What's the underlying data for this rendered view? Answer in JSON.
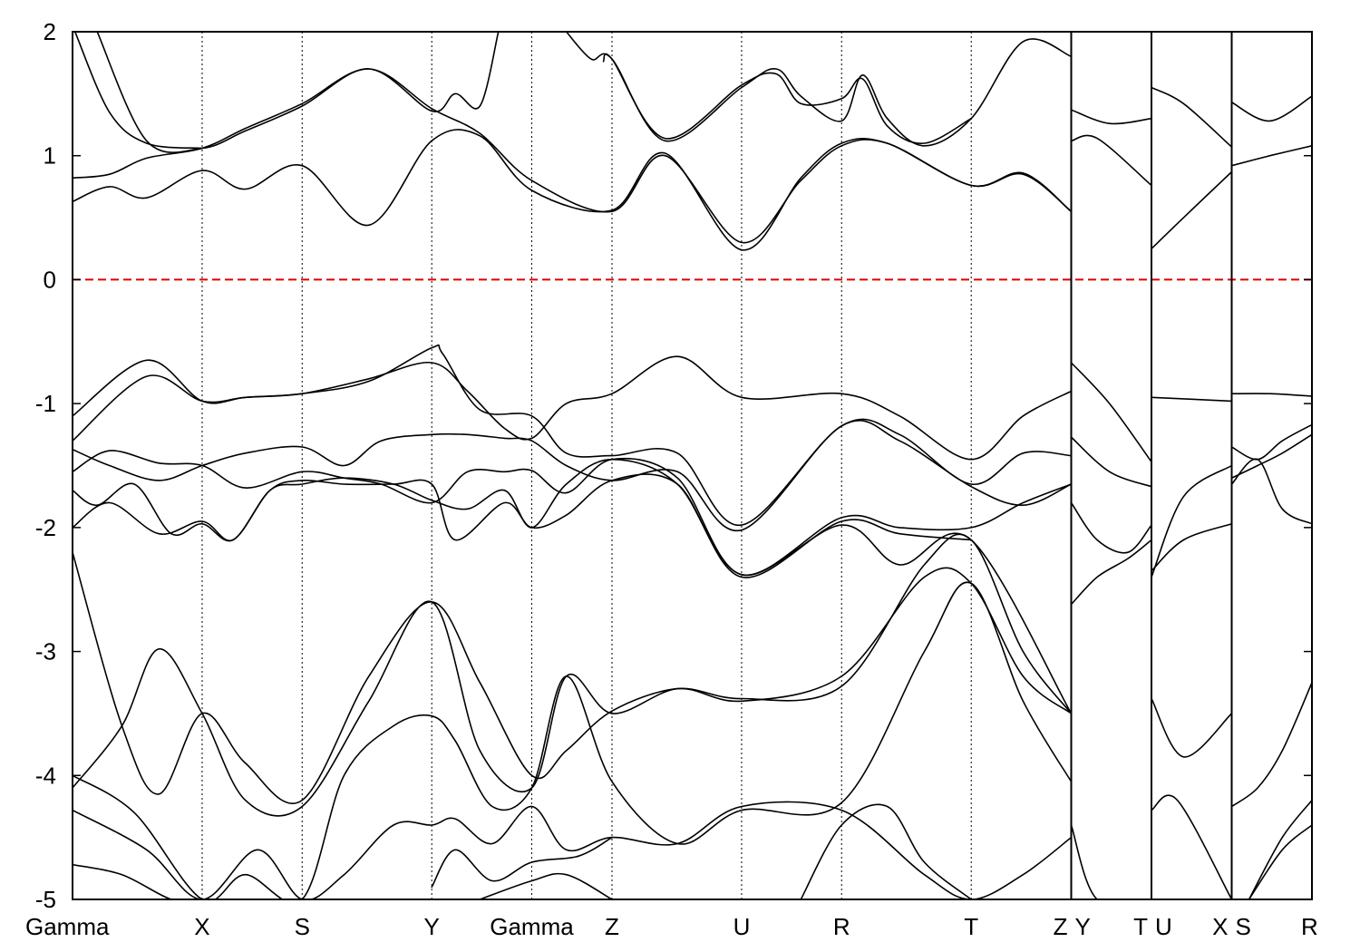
{
  "chart_data": {
    "type": "line",
    "title": "",
    "xlabel": "",
    "ylabel": "",
    "ylim": [
      -5,
      2
    ],
    "yticks": [
      2,
      1,
      0,
      -1,
      -2,
      -3,
      -4,
      -5
    ],
    "ytick_labels": [
      "2",
      "1",
      "0",
      "-1",
      "-2",
      "-3",
      "-4",
      "-5"
    ],
    "kpoints": [
      {
        "label": "Gamma",
        "x": 0.0
      },
      {
        "label": "X",
        "x": 1.05
      },
      {
        "label": "S",
        "x": 1.86
      },
      {
        "label": "Y",
        "x": 2.91
      },
      {
        "label": "Gamma",
        "x": 3.72
      },
      {
        "label": "Z",
        "x": 4.37
      },
      {
        "label": "U",
        "x": 5.42
      },
      {
        "label": "R",
        "x": 6.23
      },
      {
        "label": "T",
        "x": 7.28
      },
      {
        "label": "Z",
        "x": 8.09
      },
      {
        "label": "Y",
        "x": 8.09
      },
      {
        "label": "T",
        "x": 8.74
      },
      {
        "label": "U",
        "x": 8.74
      },
      {
        "label": "X",
        "x": 9.39
      },
      {
        "label": "S",
        "x": 9.39
      },
      {
        "label": "R",
        "x": 10.04
      }
    ],
    "xtick_labels": [
      "Gamma",
      "X",
      "S",
      "Y",
      "Gamma",
      "Z",
      "U",
      "R",
      "T",
      "Z",
      "Y",
      "T",
      "U",
      "X",
      "S",
      "R"
    ],
    "path_breaks": [
      8.09,
      8.74,
      9.39
    ],
    "reference_line": {
      "y": 0,
      "color": "#e00000",
      "style": "dashed"
    },
    "grid": "vertical dotted lines at high-symmetry points",
    "legend": "none",
    "colors": {
      "bands": "#000000",
      "fermi": "#e00000"
    },
    "series": [
      {
        "x": [
          0,
          0.3,
          0.6,
          1.05,
          1.4,
          1.86,
          2.4,
          2.91,
          3.3,
          3.72,
          4.37,
          4.8,
          5.42,
          5.9,
          6.23,
          6.6,
          7.28,
          7.7,
          8.09
        ],
        "values": [
          0.82,
          0.85,
          0.98,
          1.06,
          1.22,
          1.42,
          1.7,
          1.38,
          1.18,
          0.8,
          0.55,
          1.0,
          0.3,
          0.8,
          1.08,
          1.1,
          0.76,
          0.85,
          0.55
        ]
      },
      {
        "x": [
          0,
          0.3,
          0.6,
          1.05,
          1.4,
          1.86,
          2.4,
          2.91,
          3.3,
          3.72,
          4.37,
          4.8,
          5.42,
          5.9,
          6.23,
          6.6,
          7.28,
          7.7,
          8.09
        ],
        "values": [
          0.63,
          0.75,
          0.66,
          0.88,
          0.73,
          0.92,
          0.44,
          1.12,
          1.16,
          0.72,
          0.56,
          1.02,
          0.24,
          0.82,
          1.1,
          1.1,
          0.76,
          0.86,
          0.55
        ]
      },
      {
        "x": [
          0.2,
          0.6,
          1.05,
          1.4,
          1.86,
          2.4,
          2.91,
          3.1,
          3.3,
          3.45
        ],
        "values": [
          2.0,
          1.12,
          1.06,
          1.2,
          1.4,
          1.7,
          1.36,
          1.5,
          1.4,
          2.0
        ]
      },
      {
        "x": [
          0.02,
          0.3,
          0.6,
          1.05
        ],
        "values": [
          2.0,
          1.35,
          1.1,
          1.06
        ]
      },
      {
        "x": [
          4.0,
          4.2,
          4.37,
          4.8,
          5.42,
          5.7,
          5.9,
          6.23,
          6.4,
          6.6,
          6.9,
          7.28,
          7.7,
          8.09
        ],
        "values": [
          2.0,
          1.78,
          1.78,
          1.12,
          1.55,
          1.7,
          1.48,
          1.28,
          1.65,
          1.3,
          1.08,
          1.3,
          1.92,
          1.8
        ]
      },
      {
        "x": [
          4.3,
          4.37,
          4.8,
          5.42,
          5.7,
          5.9,
          6.23,
          6.4,
          6.6,
          6.9,
          7.28
        ],
        "values": [
          1.76,
          1.78,
          1.14,
          1.57,
          1.66,
          1.42,
          1.46,
          1.62,
          1.24,
          1.1,
          1.3
        ]
      },
      {
        "x": [
          8.09,
          8.4,
          8.74
        ],
        "values": [
          1.37,
          1.26,
          1.3
        ]
      },
      {
        "x": [
          8.09,
          8.3,
          8.74
        ],
        "values": [
          1.12,
          1.14,
          0.76
        ]
      },
      {
        "x": [
          8.74,
          9.0,
          9.39
        ],
        "values": [
          1.55,
          1.42,
          1.07
        ]
      },
      {
        "x": [
          8.74,
          9.0,
          9.39
        ],
        "values": [
          0.25,
          0.5,
          0.87
        ]
      },
      {
        "x": [
          9.39,
          9.7,
          10.04
        ],
        "values": [
          1.43,
          1.28,
          1.48
        ]
      },
      {
        "x": [
          9.39,
          9.7,
          10.04
        ],
        "values": [
          0.92,
          1.0,
          1.08
        ]
      },
      {
        "x": [
          0,
          0.6,
          1.05,
          1.4,
          1.86,
          2.4,
          2.91,
          3.2,
          3.5,
          3.72,
          4.0,
          4.37,
          4.9,
          5.42,
          6.23,
          6.7,
          7.28,
          7.7,
          8.09
        ],
        "values": [
          -1.1,
          -0.65,
          -0.98,
          -0.95,
          -0.92,
          -0.8,
          -0.67,
          -0.9,
          -1.2,
          -1.28,
          -1.0,
          -0.92,
          -0.62,
          -0.95,
          -0.92,
          -1.1,
          -1.45,
          -1.1,
          -0.9
        ]
      },
      {
        "x": [
          0,
          0.6,
          1.05,
          1.4,
          1.86,
          2.4,
          2.91,
          3.0,
          3.3,
          3.72,
          4.0,
          4.37,
          4.9,
          5.42,
          6.23,
          6.7,
          7.28,
          7.7,
          8.09
        ],
        "values": [
          -1.3,
          -0.78,
          -0.98,
          -0.95,
          -0.92,
          -0.82,
          -0.55,
          -0.6,
          -1.05,
          -1.1,
          -1.4,
          -1.42,
          -1.4,
          -1.98,
          -1.18,
          -1.25,
          -1.65,
          -1.4,
          -1.42
        ]
      },
      {
        "x": [
          0,
          0.3,
          0.7,
          1.05,
          1.4,
          1.86,
          2.2,
          2.5,
          2.91,
          3.2,
          3.5,
          3.72,
          4.0,
          4.37,
          4.9,
          5.42,
          6.23,
          6.7,
          7.28,
          7.7,
          8.09
        ],
        "values": [
          -1.37,
          -1.5,
          -1.62,
          -1.5,
          -1.4,
          -1.35,
          -1.5,
          -1.3,
          -1.25,
          -1.25,
          -1.28,
          -1.3,
          -1.5,
          -1.62,
          -1.55,
          -2.02,
          -1.18,
          -1.3,
          -1.67,
          -1.82,
          -1.65
        ]
      },
      {
        "x": [
          0,
          0.3,
          0.7,
          1.05,
          1.4,
          1.86,
          2.2,
          2.5,
          2.91,
          3.2,
          3.5,
          3.72,
          4.0,
          4.37,
          4.9,
          5.42,
          6.23,
          6.7,
          7.28,
          7.7,
          8.09
        ],
        "values": [
          -1.55,
          -1.38,
          -1.48,
          -1.5,
          -1.68,
          -1.55,
          -1.6,
          -1.65,
          -1.8,
          -1.55,
          -1.55,
          -1.54,
          -1.72,
          -1.45,
          -1.6,
          -2.38,
          -1.92,
          -2.0,
          -2.0,
          -1.8,
          -1.65
        ]
      },
      {
        "x": [
          0,
          0.2,
          0.5,
          0.8,
          1.05,
          1.3,
          1.6,
          1.86,
          2.2,
          2.6,
          2.91,
          3.1,
          3.5,
          3.72,
          4.0,
          4.37,
          4.9,
          5.42,
          6.23,
          6.7,
          7.28
        ],
        "values": [
          -1.7,
          -1.82,
          -1.65,
          -2.05,
          -1.97,
          -2.1,
          -1.7,
          -1.62,
          -1.65,
          -1.65,
          -1.65,
          -2.1,
          -1.8,
          -2.0,
          -1.9,
          -1.62,
          -1.65,
          -2.4,
          -1.95,
          -2.05,
          -2.1
        ]
      },
      {
        "x": [
          0,
          0.3,
          0.7,
          1.05,
          1.3,
          1.6,
          1.86,
          2.2,
          2.6,
          2.91,
          3.2,
          3.5,
          3.72,
          4.0,
          4.37,
          4.9,
          5.42,
          6.23,
          6.7,
          7.28,
          8.09
        ],
        "values": [
          -2.0,
          -1.8,
          -2.05,
          -1.95,
          -2.1,
          -1.7,
          -1.65,
          -1.6,
          -1.65,
          -1.78,
          -1.85,
          -1.7,
          -2.0,
          -1.65,
          -1.45,
          -1.65,
          -2.38,
          -1.98,
          -2.3,
          -2.1,
          -3.5
        ]
      },
      {
        "x": [
          8.09,
          8.4,
          8.74
        ],
        "values": [
          -0.67,
          -1.0,
          -1.47
        ]
      },
      {
        "x": [
          8.09,
          8.4,
          8.74
        ],
        "values": [
          -1.27,
          -1.55,
          -1.67
        ]
      },
      {
        "x": [
          8.09,
          8.3,
          8.55,
          8.74
        ],
        "values": [
          -1.8,
          -2.1,
          -2.2,
          -1.98
        ]
      },
      {
        "x": [
          8.09,
          8.3,
          8.55,
          8.74
        ],
        "values": [
          -2.62,
          -2.4,
          -2.25,
          -2.1
        ]
      },
      {
        "x": [
          8.74,
          9.39
        ],
        "values": [
          -0.95,
          -0.98
        ]
      },
      {
        "x": [
          8.74,
          9.0,
          9.39
        ],
        "values": [
          -2.4,
          -1.75,
          -1.5
        ]
      },
      {
        "x": [
          8.74,
          9.0,
          9.39
        ],
        "values": [
          -2.35,
          -2.1,
          -1.97
        ]
      },
      {
        "x": [
          9.39,
          9.7,
          10.04
        ],
        "values": [
          -0.92,
          -0.92,
          -0.94
        ]
      },
      {
        "x": [
          9.39,
          9.6,
          9.8,
          10.04
        ],
        "values": [
          -1.35,
          -1.45,
          -1.3,
          -1.17
        ]
      },
      {
        "x": [
          9.39,
          9.6,
          9.8,
          10.04
        ],
        "values": [
          -1.6,
          -1.5,
          -1.4,
          -1.25
        ]
      },
      {
        "x": [
          9.39,
          9.6,
          9.8,
          10.04
        ],
        "values": [
          -1.65,
          -1.45,
          -1.85,
          -1.97
        ]
      },
      {
        "x": [
          0,
          0.4,
          0.7,
          1.05,
          1.4,
          1.86,
          2.4,
          2.91,
          3.3,
          3.72,
          4.0,
          4.37,
          4.9,
          5.42,
          6.23,
          6.9,
          7.28,
          7.7,
          8.09
        ],
        "values": [
          -2.2,
          -3.6,
          -4.15,
          -3.5,
          -3.9,
          -4.2,
          -3.2,
          -2.6,
          -3.25,
          -4.0,
          -3.8,
          -3.48,
          -3.3,
          -3.38,
          -3.28,
          -2.3,
          -2.1,
          -3.0,
          -3.5
        ]
      },
      {
        "x": [
          0,
          0.4,
          0.7,
          1.05,
          1.4,
          1.86,
          2.4,
          2.91,
          3.3,
          3.72,
          4.0,
          4.37,
          4.9,
          5.42,
          6.23,
          6.9,
          7.28,
          7.7,
          8.09
        ],
        "values": [
          -4.1,
          -3.6,
          -2.98,
          -3.5,
          -4.2,
          -4.25,
          -3.4,
          -2.6,
          -3.8,
          -4.1,
          -3.2,
          -3.5,
          -3.3,
          -3.4,
          -3.2,
          -2.4,
          -2.45,
          -3.2,
          -3.5
        ]
      },
      {
        "x": [
          0,
          0.5,
          1.05,
          1.4,
          1.86,
          2.2,
          2.6,
          2.91,
          3.1,
          3.4,
          3.72,
          4.0,
          4.37,
          4.9,
          5.42,
          6.23,
          6.9,
          7.28,
          7.7,
          8.09
        ],
        "values": [
          -4.0,
          -4.3,
          -5.0,
          -4.8,
          -5.0,
          -4.0,
          -3.6,
          -3.52,
          -3.72,
          -4.25,
          -4.1,
          -3.2,
          -4.05,
          -4.55,
          -4.28,
          -4.22,
          -3.0,
          -2.45,
          -3.4,
          -4.05
        ]
      },
      {
        "x": [
          0,
          0.6,
          1.05,
          1.5,
          1.86,
          2.2,
          2.6,
          2.91,
          3.1,
          3.4,
          3.72,
          4.0,
          4.37,
          4.9,
          5.42,
          6.23,
          6.9,
          7.28,
          7.7,
          8.09
        ],
        "values": [
          -4.28,
          -4.6,
          -5.0,
          -4.6,
          -5.0,
          -4.8,
          -4.4,
          -4.4,
          -4.35,
          -4.55,
          -4.25,
          -4.6,
          -4.5,
          -4.55,
          -4.25,
          -4.28,
          -4.8,
          -5.0,
          -4.8,
          -4.5
        ]
      },
      {
        "x": [
          0,
          0.4,
          0.8,
          1.05
        ],
        "values": [
          -4.72,
          -4.8,
          -5.0,
          -5.0
        ]
      },
      {
        "x": [
          2.91,
          3.1,
          3.4,
          3.72,
          4.1,
          4.37
        ],
        "values": [
          -4.9,
          -4.6,
          -4.85,
          -4.7,
          -4.65,
          -4.5
        ]
      },
      {
        "x": [
          3.3,
          3.72,
          4.0,
          4.37
        ],
        "values": [
          -5.0,
          -4.85,
          -4.8,
          -5.0
        ]
      },
      {
        "x": [
          5.9,
          6.23,
          6.6,
          6.9,
          7.28
        ],
        "values": [
          -5.0,
          -4.4,
          -4.25,
          -4.7,
          -5.0
        ]
      },
      {
        "x": [
          8.09,
          8.3,
          8.74
        ],
        "values": [
          -4.4,
          -5.0,
          -5.0
        ]
      },
      {
        "x": [
          8.74,
          9.0,
          9.39
        ],
        "values": [
          -3.38,
          -3.85,
          -3.5
        ]
      },
      {
        "x": [
          8.74,
          8.95,
          9.39
        ],
        "values": [
          -4.28,
          -4.2,
          -5.0
        ]
      },
      {
        "x": [
          9.39,
          9.6,
          9.8,
          10.04
        ],
        "values": [
          -4.25,
          -4.1,
          -3.8,
          -3.25
        ]
      },
      {
        "x": [
          9.53,
          9.8,
          10.04
        ],
        "values": [
          -5.0,
          -4.5,
          -4.2
        ]
      },
      {
        "x": [
          9.53,
          9.8,
          10.04
        ],
        "values": [
          -5.0,
          -4.6,
          -4.4
        ]
      }
    ]
  }
}
